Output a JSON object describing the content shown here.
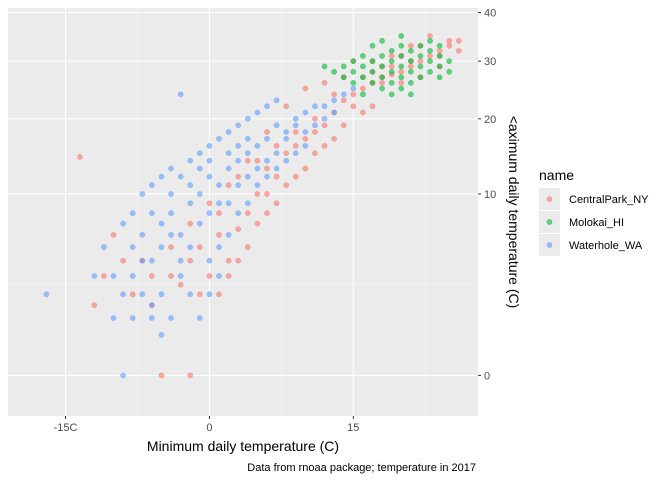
{
  "chart_data": {
    "type": "scatter",
    "xlabel": "Minimum daily temperature (C)",
    "ylabel": "<aximum daily temperature (C)",
    "caption": "Data from rnoaa package; temperature in 2017",
    "x_ticks": [
      {
        "value": -15,
        "label": "-15C"
      },
      {
        "value": 0,
        "label": "0"
      },
      {
        "value": 15,
        "label": "15"
      }
    ],
    "y_ticks": [
      {
        "value": 0,
        "label": "0"
      },
      {
        "value": 10,
        "label": "10"
      },
      {
        "value": 20,
        "label": "20"
      },
      {
        "value": 30,
        "label": "30"
      },
      {
        "value": 40,
        "label": "40"
      }
    ],
    "y_scale": "sqrt",
    "xlim": [
      -21,
      28
    ],
    "ylim": [
      -0.5,
      41
    ],
    "y_axis_position": "right",
    "grid": true,
    "legend": {
      "title": "name",
      "position": "right"
    },
    "series": [
      {
        "name": "CentralPark_NY",
        "color": "#F8766D",
        "points": [
          [
            -13.5,
            14.5
          ],
          [
            -12,
            1.5
          ],
          [
            -6,
            1.5
          ],
          [
            -7,
            4
          ],
          [
            -5,
            0
          ],
          [
            -2,
            0
          ],
          [
            -8,
            2
          ],
          [
            -4,
            3
          ],
          [
            -3,
            2.5
          ],
          [
            -1,
            5
          ],
          [
            1,
            6
          ],
          [
            2,
            4
          ],
          [
            3,
            6.5
          ],
          [
            4,
            8
          ],
          [
            5,
            10
          ],
          [
            6,
            10
          ],
          [
            7,
            12
          ],
          [
            6,
            13
          ],
          [
            8,
            15
          ],
          [
            9,
            16
          ],
          [
            10,
            17
          ],
          [
            11,
            18
          ],
          [
            12,
            19
          ],
          [
            13,
            21
          ],
          [
            14,
            23
          ],
          [
            15,
            24
          ],
          [
            16,
            25
          ],
          [
            17,
            26
          ],
          [
            18,
            27
          ],
          [
            19,
            27.5
          ],
          [
            20,
            28
          ],
          [
            21,
            29
          ],
          [
            22,
            30
          ],
          [
            23,
            31
          ],
          [
            24,
            32
          ],
          [
            25,
            33
          ],
          [
            26,
            34
          ],
          [
            17,
            22
          ],
          [
            16,
            21
          ],
          [
            15,
            22
          ],
          [
            14,
            19
          ],
          [
            13,
            17
          ],
          [
            12,
            16
          ],
          [
            11,
            15
          ],
          [
            10,
            13
          ],
          [
            9,
            12
          ],
          [
            8,
            11
          ],
          [
            7,
            9
          ],
          [
            6,
            8
          ],
          [
            5,
            7
          ],
          [
            4,
            5
          ],
          [
            3,
            4
          ],
          [
            2,
            3
          ],
          [
            1,
            2
          ],
          [
            0,
            3
          ],
          [
            -1,
            2
          ],
          [
            20,
            31
          ],
          [
            22,
            33
          ],
          [
            23,
            35
          ],
          [
            25,
            34
          ],
          [
            19,
            29
          ],
          [
            18,
            26
          ],
          [
            21,
            30
          ],
          [
            24,
            31
          ],
          [
            20,
            26
          ],
          [
            18,
            29
          ],
          [
            16,
            27
          ],
          [
            14,
            27
          ],
          [
            12,
            26
          ],
          [
            10,
            25
          ],
          [
            8,
            22
          ],
          [
            6,
            18
          ],
          [
            4,
            14
          ],
          [
            2,
            11
          ],
          [
            0,
            9
          ],
          [
            -2,
            7
          ],
          [
            -4,
            5
          ],
          [
            -6,
            3
          ],
          [
            15,
            30
          ],
          [
            17,
            30
          ],
          [
            13,
            24
          ],
          [
            11,
            20
          ],
          [
            9,
            18
          ],
          [
            7,
            16
          ],
          [
            5,
            14
          ],
          [
            3,
            12
          ],
          [
            1,
            8
          ],
          [
            -2,
            4
          ],
          [
            -9,
            4
          ],
          [
            -10,
            6
          ],
          [
            -11,
            3
          ],
          [
            24,
            29
          ],
          [
            26,
            32
          ],
          [
            21,
            33
          ],
          [
            19,
            31
          ],
          [
            17,
            28
          ],
          [
            22,
            27
          ]
        ]
      },
      {
        "name": "Molokai_HI",
        "color": "#00BA38",
        "points": [
          [
            12,
            29
          ],
          [
            13,
            28
          ],
          [
            14,
            29
          ],
          [
            15,
            30
          ],
          [
            15,
            28
          ],
          [
            16,
            29
          ],
          [
            16,
            27
          ],
          [
            17,
            30
          ],
          [
            17,
            28
          ],
          [
            17,
            26
          ],
          [
            18,
            31
          ],
          [
            18,
            29
          ],
          [
            18,
            27
          ],
          [
            19,
            32
          ],
          [
            19,
            30
          ],
          [
            19,
            28
          ],
          [
            19,
            26
          ],
          [
            20,
            31
          ],
          [
            20,
            29
          ],
          [
            20,
            27
          ],
          [
            20,
            25
          ],
          [
            21,
            32
          ],
          [
            21,
            30
          ],
          [
            21,
            28
          ],
          [
            21,
            26
          ],
          [
            22,
            31
          ],
          [
            22,
            29
          ],
          [
            22,
            27
          ],
          [
            23,
            32
          ],
          [
            23,
            30
          ],
          [
            23,
            28
          ],
          [
            24,
            31
          ],
          [
            24,
            29
          ],
          [
            24,
            27
          ],
          [
            25,
            30
          ],
          [
            25,
            28
          ],
          [
            16,
            31
          ],
          [
            17,
            33
          ],
          [
            18,
            34
          ],
          [
            20,
            33
          ],
          [
            22,
            33
          ],
          [
            23,
            34
          ],
          [
            15,
            26
          ],
          [
            14,
            27
          ],
          [
            19,
            24
          ],
          [
            21,
            24
          ],
          [
            18,
            25
          ],
          [
            24,
            33
          ],
          [
            16,
            24
          ],
          [
            20,
            35
          ]
        ]
      },
      {
        "name": "Waterhole_WA",
        "color": "#619CFF",
        "points": [
          [
            -17,
            2
          ],
          [
            -9,
            0
          ],
          [
            -8,
            1
          ],
          [
            -7,
            2
          ],
          [
            -6,
            1.5
          ],
          [
            -5,
            2
          ],
          [
            -4,
            1
          ],
          [
            -3,
            3
          ],
          [
            -2,
            2
          ],
          [
            -8,
            5
          ],
          [
            -7,
            6
          ],
          [
            -6,
            4
          ],
          [
            -5,
            7
          ],
          [
            -4,
            8
          ],
          [
            -3,
            6
          ],
          [
            -2,
            9
          ],
          [
            -1,
            10
          ],
          [
            0,
            12
          ],
          [
            1,
            11
          ],
          [
            2,
            13
          ],
          [
            3,
            14
          ],
          [
            4,
            15
          ],
          [
            5,
            16
          ],
          [
            6,
            17
          ],
          [
            7,
            19
          ],
          [
            8,
            18
          ],
          [
            9,
            20
          ],
          [
            10,
            21
          ],
          [
            11,
            22
          ],
          [
            12,
            20
          ],
          [
            13,
            23
          ],
          [
            14,
            24
          ],
          [
            15,
            25
          ],
          [
            -10,
            3
          ],
          [
            -11,
            5
          ],
          [
            -12,
            3
          ],
          [
            -9,
            7
          ],
          [
            -8,
            8
          ],
          [
            -7,
            10
          ],
          [
            -6,
            11
          ],
          [
            -5,
            12
          ],
          [
            -4,
            13
          ],
          [
            -3,
            12
          ],
          [
            -2,
            14
          ],
          [
            -1,
            15
          ],
          [
            0,
            16
          ],
          [
            1,
            17
          ],
          [
            2,
            18
          ],
          [
            3,
            19
          ],
          [
            4,
            20
          ],
          [
            5,
            21
          ],
          [
            6,
            22
          ],
          [
            7,
            23
          ],
          [
            -3,
            24
          ],
          [
            0,
            4
          ],
          [
            1,
            5
          ],
          [
            2,
            6
          ],
          [
            3,
            8
          ],
          [
            4,
            9
          ],
          [
            5,
            11
          ],
          [
            6,
            12
          ],
          [
            7,
            13
          ],
          [
            8,
            14
          ],
          [
            9,
            15
          ],
          [
            10,
            16
          ],
          [
            -6,
            1
          ],
          [
            -5,
            0.5
          ],
          [
            -10,
            1
          ],
          [
            -9,
            2
          ],
          [
            -1,
            1
          ],
          [
            0,
            2
          ],
          [
            1,
            3
          ],
          [
            -2,
            5
          ],
          [
            -3,
            4
          ],
          [
            -4,
            6
          ],
          [
            -5,
            5
          ],
          [
            -6,
            8
          ],
          [
            -7,
            4
          ],
          [
            -8,
            3
          ],
          [
            2,
            9
          ],
          [
            3,
            11
          ],
          [
            4,
            12
          ],
          [
            5,
            13
          ],
          [
            6,
            14
          ],
          [
            7,
            15
          ],
          [
            8,
            17
          ],
          [
            9,
            19
          ],
          [
            10,
            18
          ],
          [
            11,
            19
          ],
          [
            12,
            22
          ],
          [
            13,
            21
          ],
          [
            -1,
            7
          ],
          [
            0,
            8
          ],
          [
            1,
            9
          ],
          [
            -2,
            11
          ],
          [
            -4,
            10
          ],
          [
            -1,
            13
          ],
          [
            0,
            14
          ],
          [
            2,
            15
          ],
          [
            3,
            16
          ],
          [
            4,
            17
          ]
        ]
      }
    ]
  }
}
